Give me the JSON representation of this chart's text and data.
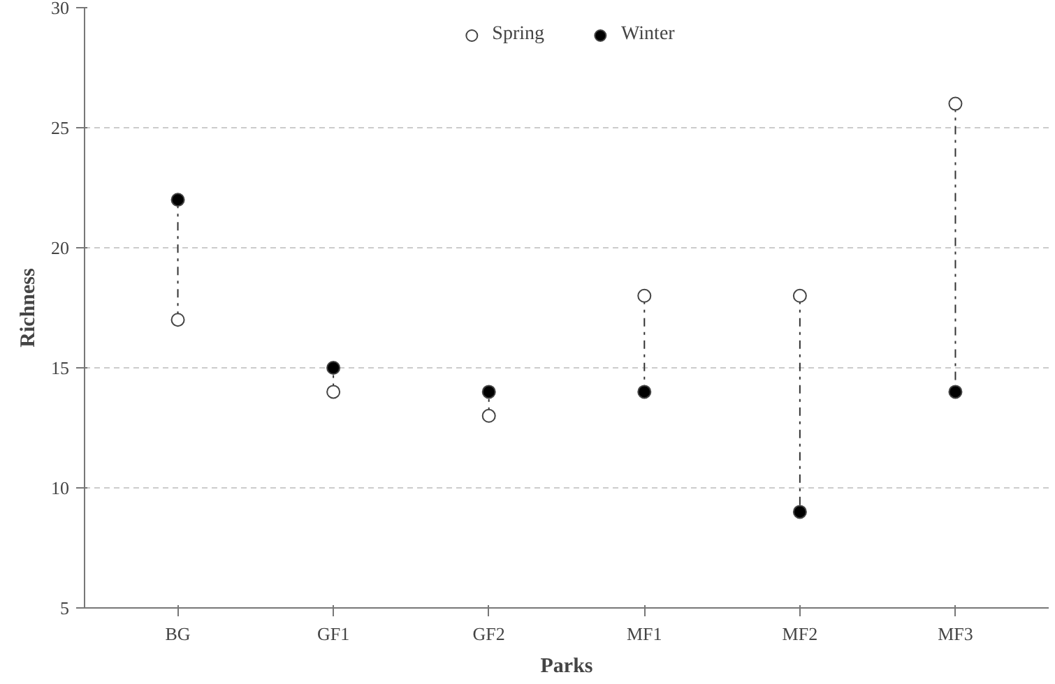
{
  "chart_data": {
    "type": "scatter",
    "xlabel": "Parks",
    "ylabel": "Richness",
    "categories": [
      "BG",
      "GF1",
      "GF2",
      "MF1",
      "MF2",
      "MF3"
    ],
    "series": [
      {
        "name": "Spring",
        "color": "#ffffff",
        "values": [
          17,
          14,
          13,
          18,
          18,
          26
        ]
      },
      {
        "name": "Winter",
        "color": "#000000",
        "values": [
          22,
          15,
          14,
          14,
          9,
          14
        ]
      }
    ],
    "ylim": [
      5,
      30
    ],
    "yticks": [
      5,
      10,
      15,
      20,
      25,
      30
    ],
    "grid": "y",
    "legend": "top",
    "marker": "circle",
    "line_style": "dashed"
  }
}
